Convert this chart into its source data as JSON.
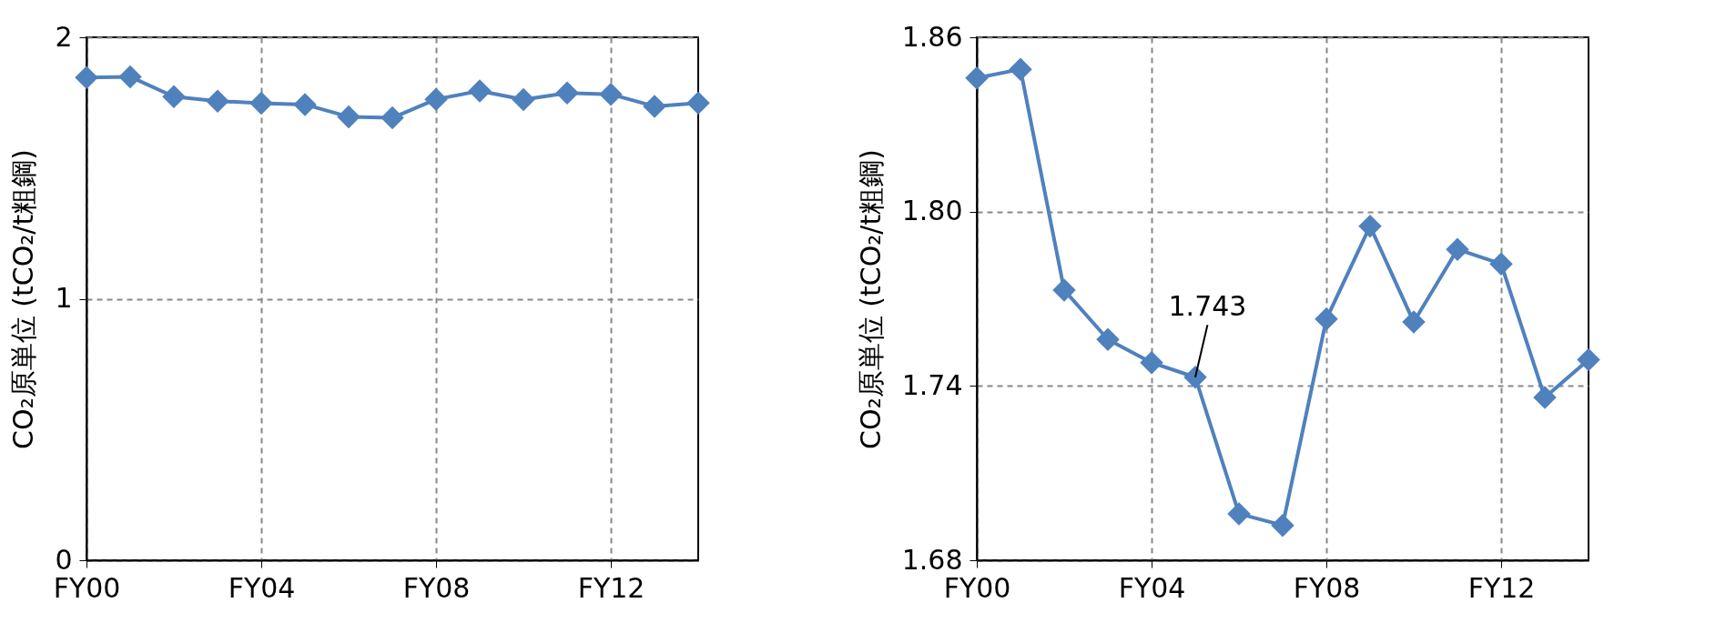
{
  "chart_data": [
    {
      "type": "line",
      "ylabel": "CO₂原単位 (tCO₂/t粗鋼)",
      "categories": [
        "FY00",
        null,
        null,
        null,
        "FY04",
        null,
        null,
        null,
        "FY08",
        null,
        null,
        null,
        "FY12",
        null,
        null
      ],
      "series": [
        {
          "color": "#4f81bd",
          "values": [
            1.846,
            1.849,
            1.773,
            1.756,
            1.748,
            1.743,
            1.696,
            1.692,
            1.763,
            1.795,
            1.762,
            1.787,
            1.782,
            1.736,
            1.749
          ]
        }
      ],
      "ylim": [
        0,
        2
      ],
      "yticks": [
        {
          "value": 0,
          "label": "0"
        },
        {
          "value": 1,
          "label": "1"
        },
        {
          "value": 2,
          "label": "2"
        }
      ],
      "grid": true,
      "marker": "diamond",
      "line_style": "solid"
    },
    {
      "type": "line",
      "ylabel": "CO₂原単位 (tCO₂/t粗鋼)",
      "categories": [
        "FY00",
        null,
        null,
        null,
        "FY04",
        null,
        null,
        null,
        "FY08",
        null,
        null,
        null,
        "FY12",
        null,
        null
      ],
      "series": [
        {
          "color": "#4f81bd",
          "values": [
            1.846,
            1.849,
            1.773,
            1.756,
            1.748,
            1.743,
            1.696,
            1.692,
            1.763,
            1.795,
            1.762,
            1.787,
            1.782,
            1.736,
            1.749
          ]
        }
      ],
      "ylim": [
        1.68,
        1.86
      ],
      "yticks": [
        {
          "value": 1.68,
          "label": "1.68"
        },
        {
          "value": 1.74,
          "label": "1.74"
        },
        {
          "value": 1.8,
          "label": "1.80"
        },
        {
          "value": 1.86,
          "label": "1.86"
        }
      ],
      "grid": true,
      "marker": "diamond",
      "line_style": "solid",
      "annotations": [
        {
          "text": "1.743",
          "y": 1.743
        }
      ]
    }
  ]
}
